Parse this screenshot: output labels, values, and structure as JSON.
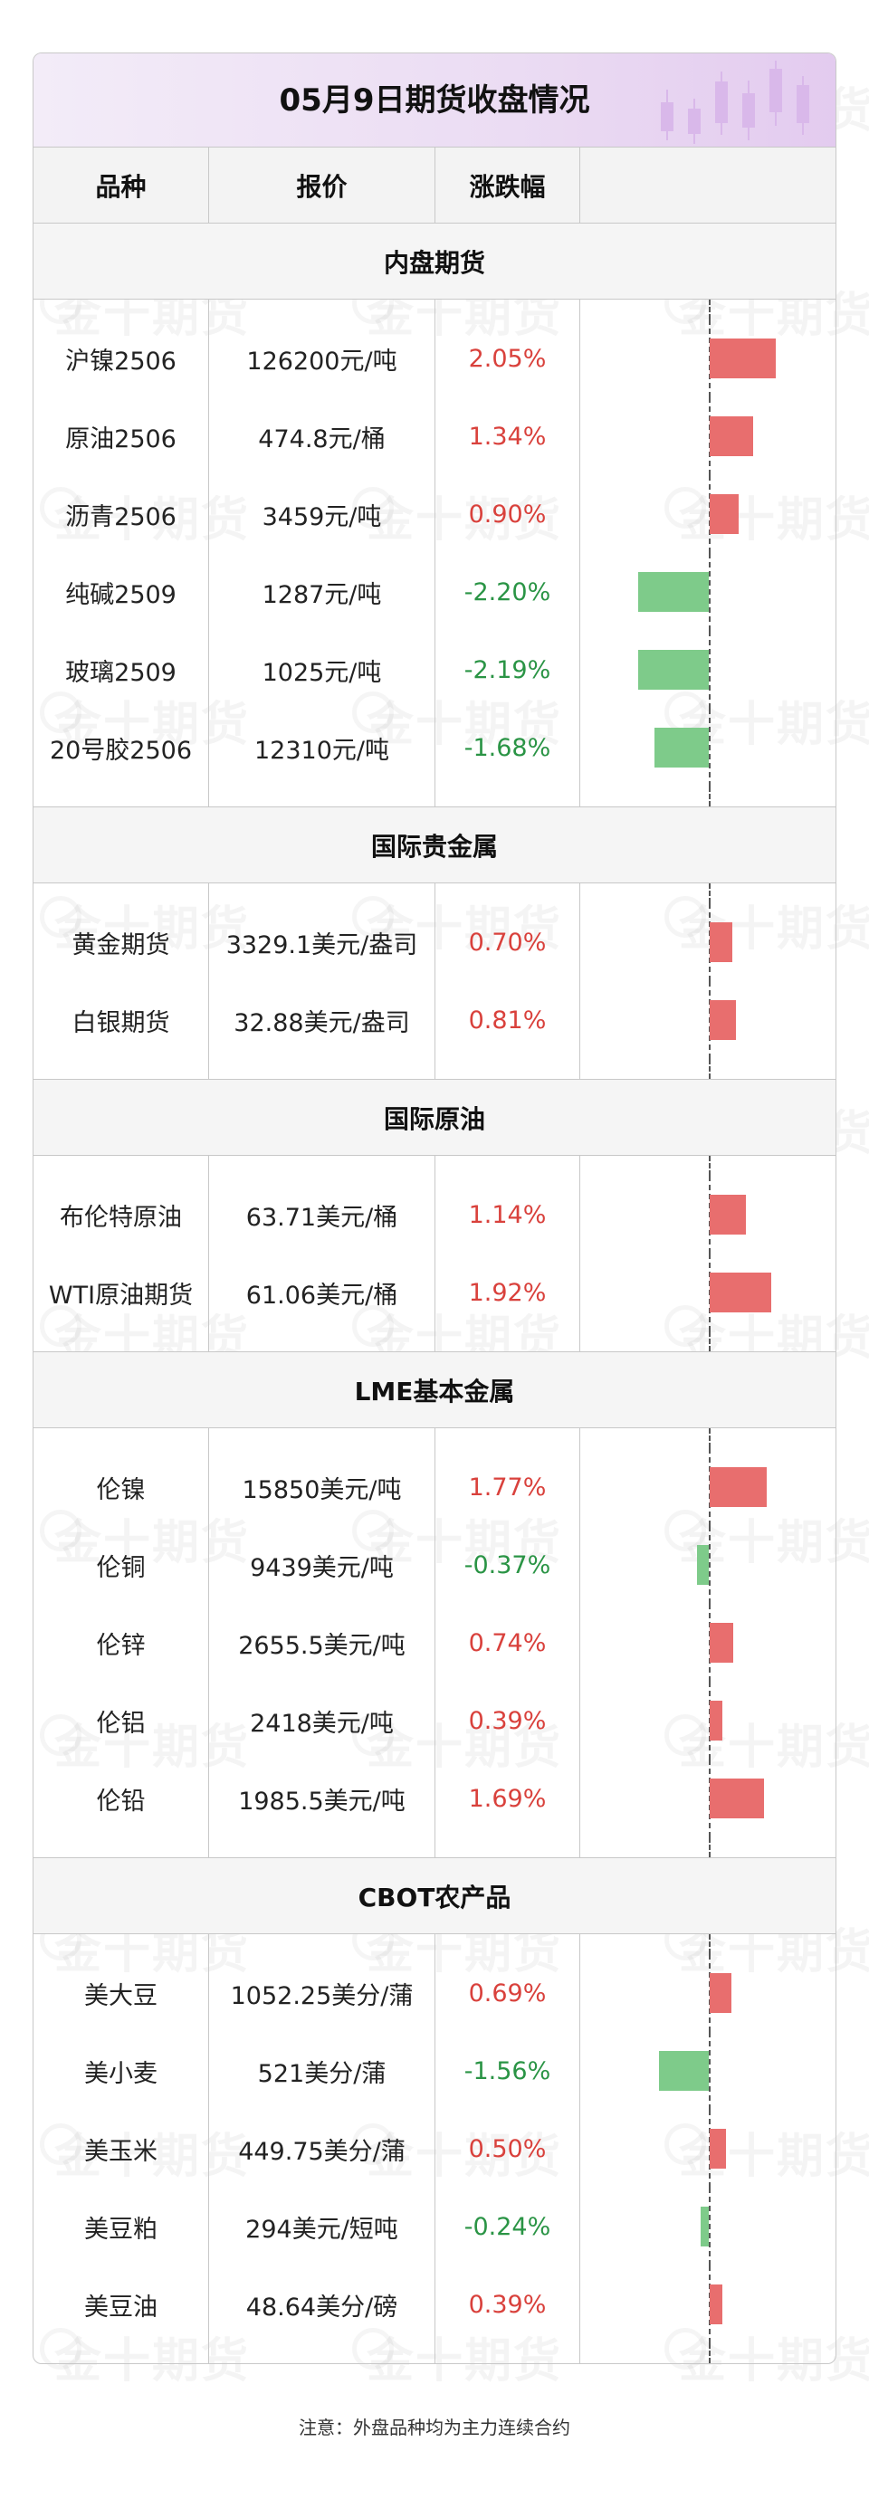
{
  "title": "05月9日期货收盘情况",
  "columns": {
    "name": "品种",
    "price": "报价",
    "change": "涨跌幅"
  },
  "watermark": "金十期货",
  "colors": {
    "positive": "#d9413c",
    "negative": "#2a9445",
    "bar_positive": "#e86e6e",
    "bar_negative": "#7ecb8a"
  },
  "chart_data": {
    "type": "bar",
    "orientation": "horizontal",
    "unit": "%",
    "xlim": [
      -2.2,
      2.2
    ]
  },
  "sections": [
    {
      "title": "内盘期货",
      "rows": [
        {
          "name": "沪镍2506",
          "price": "126200元/吨",
          "change": "2.05%",
          "value": 2.05
        },
        {
          "name": "原油2506",
          "price": "474.8元/桶",
          "change": "1.34%",
          "value": 1.34
        },
        {
          "name": "沥青2506",
          "price": "3459元/吨",
          "change": "0.90%",
          "value": 0.9
        },
        {
          "name": "纯碱2509",
          "price": "1287元/吨",
          "change": "-2.20%",
          "value": -2.2
        },
        {
          "name": "玻璃2509",
          "price": "1025元/吨",
          "change": "-2.19%",
          "value": -2.19
        },
        {
          "name": "20号胶2506",
          "price": "12310元/吨",
          "change": "-1.68%",
          "value": -1.68
        }
      ]
    },
    {
      "title": "国际贵金属",
      "rows": [
        {
          "name": "黄金期货",
          "price": "3329.1美元/盎司",
          "change": "0.70%",
          "value": 0.7
        },
        {
          "name": "白银期货",
          "price": "32.88美元/盎司",
          "change": "0.81%",
          "value": 0.81
        }
      ]
    },
    {
      "title": "国际原油",
      "rows": [
        {
          "name": "布伦特原油",
          "price": "63.71美元/桶",
          "change": "1.14%",
          "value": 1.14
        },
        {
          "name": "WTI原油期货",
          "price": "61.06美元/桶",
          "change": "1.92%",
          "value": 1.92
        }
      ]
    },
    {
      "title": "LME基本金属",
      "rows": [
        {
          "name": "伦镍",
          "price": "15850美元/吨",
          "change": "1.77%",
          "value": 1.77
        },
        {
          "name": "伦铜",
          "price": "9439美元/吨",
          "change": "-0.37%",
          "value": -0.37
        },
        {
          "name": "伦锌",
          "price": "2655.5美元/吨",
          "change": "0.74%",
          "value": 0.74
        },
        {
          "name": "伦铝",
          "price": "2418美元/吨",
          "change": "0.39%",
          "value": 0.39
        },
        {
          "name": "伦铅",
          "price": "1985.5美元/吨",
          "change": "1.69%",
          "value": 1.69
        }
      ]
    },
    {
      "title": "CBOT农产品",
      "rows": [
        {
          "name": "美大豆",
          "price": "1052.25美分/蒲",
          "change": "0.69%",
          "value": 0.69
        },
        {
          "name": "美小麦",
          "price": "521美分/蒲",
          "change": "-1.56%",
          "value": -1.56
        },
        {
          "name": "美玉米",
          "price": "449.75美分/蒲",
          "change": "0.50%",
          "value": 0.5
        },
        {
          "name": "美豆粕",
          "price": "294美元/短吨",
          "change": "-0.24%",
          "value": -0.24
        },
        {
          "name": "美豆油",
          "price": "48.64美分/磅",
          "change": "0.39%",
          "value": 0.39
        }
      ]
    }
  ],
  "footnote": "注意：外盘品种均为主力连续合约"
}
